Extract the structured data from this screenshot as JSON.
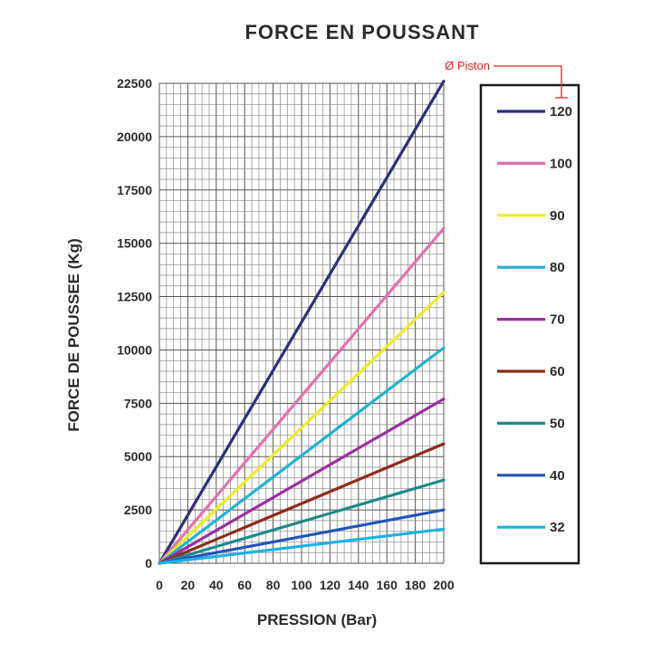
{
  "chart_data": {
    "type": "line",
    "title": "FORCE EN POUSSANT",
    "xlabel": "PRESSION (Bar)",
    "ylabel": "FORCE DE POUSSEE (Kg)",
    "xlim": [
      0,
      200
    ],
    "ylim": [
      0,
      22500
    ],
    "x_ticks": [
      0,
      20,
      40,
      60,
      80,
      100,
      120,
      140,
      160,
      180,
      200
    ],
    "y_ticks": [
      0,
      2500,
      5000,
      7500,
      10000,
      12500,
      15000,
      17500,
      20000,
      22500
    ],
    "grid": true,
    "legend_position": "right",
    "legend_annotation": "Ø Piston",
    "x": [
      0,
      200
    ],
    "series": [
      {
        "name": "120",
        "color": "#2e2f7a",
        "values": [
          0,
          22600
        ]
      },
      {
        "name": "100",
        "color": "#e66fae",
        "values": [
          0,
          15700
        ]
      },
      {
        "name": "90",
        "color": "#eded1f",
        "values": [
          0,
          12700
        ]
      },
      {
        "name": "80",
        "color": "#1fb3d2",
        "values": [
          0,
          10100
        ]
      },
      {
        "name": "70",
        "color": "#9b2f9f",
        "values": [
          0,
          7700
        ]
      },
      {
        "name": "60",
        "color": "#8f2b1f",
        "values": [
          0,
          5600
        ]
      },
      {
        "name": "50",
        "color": "#1d8a8a",
        "values": [
          0,
          3900
        ]
      },
      {
        "name": "40",
        "color": "#2454b8",
        "values": [
          0,
          2500
        ]
      },
      {
        "name": "32",
        "color": "#1ab3e6",
        "values": [
          0,
          1600
        ]
      }
    ]
  }
}
